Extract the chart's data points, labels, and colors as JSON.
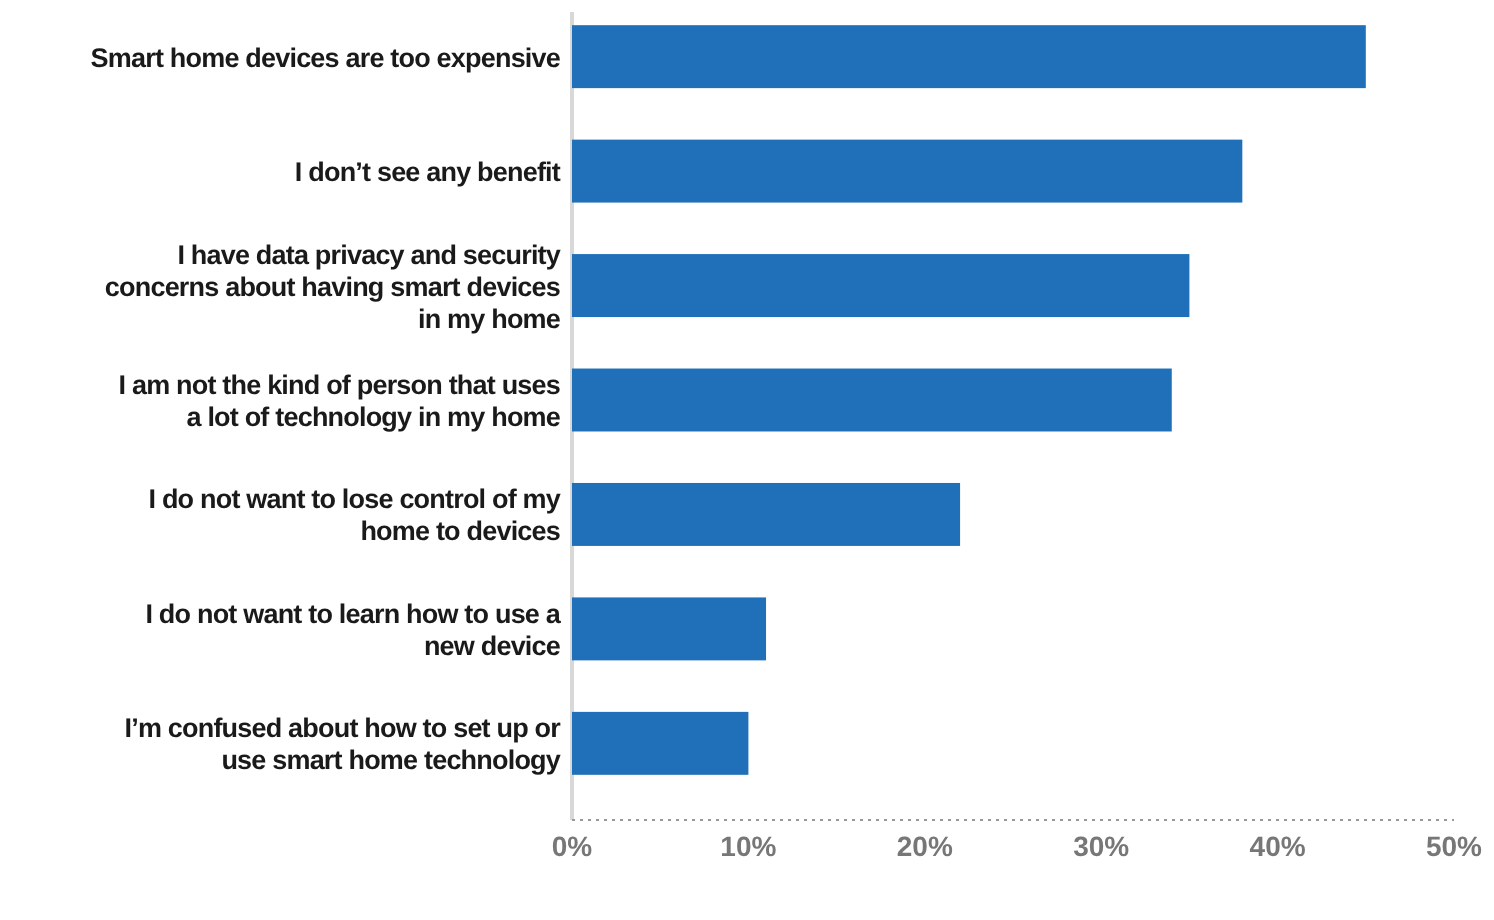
{
  "chart_data": {
    "type": "bar",
    "orientation": "horizontal",
    "categories": [
      "Smart home devices are too expensive",
      "I don’t see any benefit",
      "I have data privacy and security\nconcerns about having smart devices\nin my home",
      "I am not the kind of person that uses\na lot of technology in my home",
      "I do not want to lose control of my\nhome to devices",
      "I do not want to learn how to use a\nnew device",
      "I’m confused about how to set up or\nuse smart home technology"
    ],
    "values": [
      45,
      38,
      35,
      34,
      22,
      11,
      10
    ],
    "color": "#1f70b8",
    "xlim": [
      0,
      50
    ],
    "xticks": [
      {
        "value": 0,
        "label": "0%"
      },
      {
        "value": 10,
        "label": "10%"
      },
      {
        "value": 20,
        "label": "20%"
      },
      {
        "value": 30,
        "label": "30%"
      },
      {
        "value": 40,
        "label": "40%"
      },
      {
        "value": 50,
        "label": "50%"
      }
    ],
    "grid": false
  }
}
